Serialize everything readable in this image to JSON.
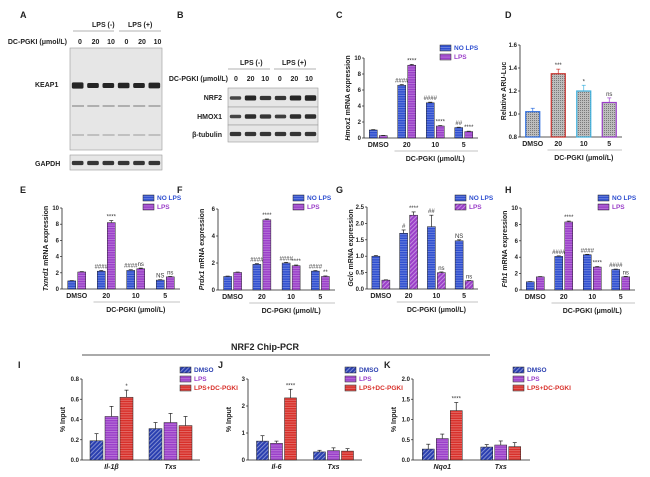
{
  "figure_title": "NRF2 Chip-PCR",
  "blots": {
    "A": {
      "label": "A",
      "lps_neg": "LPS (-)",
      "lps_pos": "LPS (+)",
      "dose_label": "DC-PGKI (μmol/L)",
      "doses": [
        "0",
        "20",
        "10",
        "0",
        "20",
        "10"
      ],
      "bands": [
        "KEAP1",
        "GAPDH"
      ]
    },
    "B": {
      "label": "B",
      "lps_neg": "LPS (-)",
      "lps_pos": "LPS (+)",
      "dose_label": "DC-PGKI (μmol/L)",
      "doses": [
        "0",
        "20",
        "10",
        "0",
        "20",
        "10"
      ],
      "bands": [
        "NRF2",
        "HMOX1",
        "β-tubulin"
      ]
    }
  },
  "colors": {
    "no_lps": "#2f4fd0",
    "lps": "#9b3fc9",
    "red": "#d8302a",
    "lightblue": "#3fb2e0",
    "gray": "#8a8a8a"
  },
  "chart_data": [
    {
      "id": "C",
      "type": "bar",
      "label": "C",
      "ylabel_gene": "Hmox1",
      "ylabel_rest": " mRNA expression",
      "xlabel": "DC-PGKI (μmol/L)",
      "categories": [
        "DMSO",
        "20",
        "10",
        "5"
      ],
      "ylim": [
        0,
        10
      ],
      "yticks": [
        "0",
        "2",
        "4",
        "6",
        "8",
        "10"
      ],
      "series": [
        {
          "name": "NO LPS",
          "style": "h",
          "color": "#2f4fd0",
          "values": [
            1.0,
            6.6,
            4.4,
            1.3
          ],
          "errors": [
            0.05,
            0.08,
            0.08,
            0.05
          ],
          "annotations": [
            "",
            "####",
            "####",
            "##"
          ]
        },
        {
          "name": "LPS",
          "style": "h",
          "color": "#9b3fc9",
          "values": [
            0.3,
            9.1,
            1.5,
            0.8
          ],
          "errors": [
            0.03,
            0.1,
            0.06,
            0.05
          ],
          "annotations": [
            "",
            "****",
            "****",
            "****"
          ]
        }
      ]
    },
    {
      "id": "D",
      "type": "bar",
      "label": "D",
      "ylabel_gene": "",
      "ylabel_rest": "Relative ARU-Luc",
      "xlabel": "DC-PGKI (μmol/L)",
      "categories": [
        "DMSO",
        "20",
        "10",
        "5"
      ],
      "ylim": [
        0.8,
        1.6
      ],
      "yticks": [
        "0.8",
        "1.0",
        "1.2",
        "1.4",
        "1.6"
      ],
      "series": [
        {
          "name": "ARU-Luc",
          "style": "dots",
          "bar_colors": [
            "#2f6fe0",
            "#c8302a",
            "#3fb2e0",
            "#9b3fc9"
          ],
          "values": [
            1.02,
            1.35,
            1.2,
            1.1
          ],
          "errors": [
            0.03,
            0.04,
            0.05,
            0.04
          ],
          "annotations": [
            "",
            "***",
            "*",
            "ns"
          ]
        }
      ]
    },
    {
      "id": "E",
      "type": "bar",
      "label": "E",
      "ylabel_gene": "Txnrd1",
      "ylabel_rest": " mRNA expression",
      "xlabel": "DC-PGKI (μmol/L)",
      "categories": [
        "DMSO",
        "20",
        "10",
        "5"
      ],
      "ylim": [
        0,
        10
      ],
      "yticks": [
        "0",
        "2",
        "4",
        "6",
        "8",
        "10"
      ],
      "series": [
        {
          "name": "NO LPS",
          "style": "h",
          "color": "#2f4fd0",
          "values": [
            1.0,
            2.2,
            2.3,
            1.1
          ],
          "errors": [
            0.04,
            0.08,
            0.08,
            0.05
          ],
          "annotations": [
            "",
            "####",
            "####",
            "NS"
          ]
        },
        {
          "name": "LPS",
          "style": "h",
          "color": "#9b3fc9",
          "values": [
            2.1,
            8.2,
            2.5,
            1.5
          ],
          "errors": [
            0.05,
            0.25,
            0.08,
            0.05
          ],
          "annotations": [
            "",
            "****",
            "ns",
            "ns"
          ]
        }
      ]
    },
    {
      "id": "F",
      "type": "bar",
      "label": "F",
      "ylabel_gene": "Prdx1",
      "ylabel_rest": " mRNA expression",
      "xlabel": "DC-PGKI (μmol/L)",
      "categories": [
        "DMSO",
        "20",
        "10",
        "5"
      ],
      "ylim": [
        0,
        6
      ],
      "yticks": [
        "0",
        "2",
        "4",
        "6"
      ],
      "series": [
        {
          "name": "NO LPS",
          "style": "h",
          "color": "#2f4fd0",
          "values": [
            1.0,
            1.9,
            2.0,
            1.4
          ],
          "errors": [
            0.03,
            0.05,
            0.05,
            0.04
          ],
          "annotations": [
            "",
            "####",
            "####",
            "####"
          ]
        },
        {
          "name": "LPS",
          "style": "h",
          "color": "#9b3fc9",
          "values": [
            1.3,
            5.2,
            1.8,
            1.0
          ],
          "errors": [
            0.03,
            0.06,
            0.05,
            0.04
          ],
          "annotations": [
            "",
            "****",
            "****",
            "**"
          ]
        }
      ]
    },
    {
      "id": "G",
      "type": "bar",
      "label": "G",
      "ylabel_gene": "Gclc",
      "ylabel_rest": " mRNA expression",
      "xlabel": "DC-PGKI (μmol/L)",
      "categories": [
        "DMSO",
        "20",
        "10",
        "5"
      ],
      "ylim": [
        0,
        2.5
      ],
      "yticks": [
        "0.0",
        "0.5",
        "1.0",
        "1.5",
        "2.0",
        "2.5"
      ],
      "series": [
        {
          "name": "NO LPS",
          "style": "h",
          "color": "#2f4fd0",
          "values": [
            1.0,
            1.7,
            1.9,
            1.47
          ],
          "errors": [
            0.02,
            0.1,
            0.35,
            0.03
          ],
          "annotations": [
            "",
            "#",
            "##",
            "NS"
          ]
        },
        {
          "name": "LPS",
          "style": "d",
          "color": "#9b3fc9",
          "values": [
            0.27,
            2.25,
            0.5,
            0.25
          ],
          "errors": [
            0.01,
            0.1,
            0.02,
            0.01
          ],
          "annotations": [
            "",
            "****",
            "ns",
            "ns"
          ]
        }
      ]
    },
    {
      "id": "H",
      "type": "bar",
      "label": "H",
      "ylabel_gene": "Fth1",
      "ylabel_rest": " mRNA expression",
      "xlabel": "DC-PGKI (μmol/L)",
      "categories": [
        "DMSO",
        "20",
        "10",
        "5"
      ],
      "ylim": [
        0,
        10
      ],
      "yticks": [
        "0",
        "2",
        "4",
        "6",
        "8",
        "10"
      ],
      "series": [
        {
          "name": "NO LPS",
          "style": "h",
          "color": "#2f4fd0",
          "values": [
            1.0,
            4.1,
            4.3,
            2.5
          ],
          "errors": [
            0.03,
            0.06,
            0.05,
            0.05
          ],
          "annotations": [
            "",
            "####",
            "####",
            "####"
          ]
        },
        {
          "name": "LPS",
          "style": "h",
          "color": "#9b3fc9",
          "values": [
            1.6,
            8.3,
            2.8,
            1.6
          ],
          "errors": [
            0.04,
            0.1,
            0.06,
            0.06
          ],
          "annotations": [
            "",
            "****",
            "****",
            "ns"
          ]
        }
      ]
    },
    {
      "id": "I",
      "type": "bar",
      "label": "I",
      "ylabel_gene": "",
      "ylabel_rest": "% Input",
      "xlabel": "",
      "categories": [
        "Il-1β",
        "Txs"
      ],
      "ylim": [
        0,
        0.8
      ],
      "yticks": [
        "0.0",
        "0.2",
        "0.4",
        "0.6",
        "0.8"
      ],
      "series": [
        {
          "name": "DMSO",
          "style": "d",
          "color": "#2a3fb0",
          "values": [
            0.19,
            0.31
          ],
          "errors": [
            0.07,
            0.06
          ],
          "annotations": [
            "",
            ""
          ]
        },
        {
          "name": "LPS",
          "style": "h",
          "color": "#9b3fc9",
          "values": [
            0.43,
            0.37
          ],
          "errors": [
            0.1,
            0.09
          ],
          "annotations": [
            "",
            ""
          ]
        },
        {
          "name": "LPS+DC-PGKI",
          "style": "h",
          "color": "#d8302a",
          "values": [
            0.62,
            0.34
          ],
          "errors": [
            0.07,
            0.09
          ],
          "annotations": [
            "*",
            ""
          ]
        }
      ]
    },
    {
      "id": "J",
      "type": "bar",
      "label": "J",
      "ylabel_gene": "",
      "ylabel_rest": "% Input",
      "xlabel": "",
      "categories": [
        "Il-6",
        "Txs"
      ],
      "ylim": [
        0,
        3
      ],
      "yticks": [
        "0",
        "1",
        "2",
        "3"
      ],
      "series": [
        {
          "name": "DMSO",
          "style": "d",
          "color": "#2a3fb0",
          "values": [
            0.7,
            0.3
          ],
          "errors": [
            0.2,
            0.06
          ],
          "annotations": [
            "",
            ""
          ]
        },
        {
          "name": "LPS",
          "style": "h",
          "color": "#9b3fc9",
          "values": [
            0.62,
            0.35
          ],
          "errors": [
            0.08,
            0.1
          ],
          "annotations": [
            "",
            ""
          ]
        },
        {
          "name": "LPS+DC-PGKI",
          "style": "h",
          "color": "#d8302a",
          "values": [
            2.3,
            0.33
          ],
          "errors": [
            0.32,
            0.09
          ],
          "annotations": [
            "****",
            ""
          ]
        }
      ]
    },
    {
      "id": "K",
      "type": "bar",
      "label": "K",
      "ylabel_gene": "",
      "ylabel_rest": "% Input",
      "xlabel": "",
      "categories": [
        "Nqo1",
        "Txs"
      ],
      "ylim": [
        0,
        2.0
      ],
      "yticks": [
        "0.0",
        "0.5",
        "1.0",
        "1.5",
        "2.0"
      ],
      "series": [
        {
          "name": "DMSO",
          "style": "d",
          "color": "#2a3fb0",
          "values": [
            0.27,
            0.32
          ],
          "errors": [
            0.12,
            0.06
          ],
          "annotations": [
            "",
            ""
          ]
        },
        {
          "name": "LPS",
          "style": "h",
          "color": "#9b3fc9",
          "values": [
            0.53,
            0.37
          ],
          "errors": [
            0.11,
            0.1
          ],
          "annotations": [
            "",
            ""
          ]
        },
        {
          "name": "LPS+DC-PGKI",
          "style": "h",
          "color": "#d8302a",
          "values": [
            1.22,
            0.33
          ],
          "errors": [
            0.2,
            0.1
          ],
          "annotations": [
            "****",
            ""
          ]
        }
      ]
    }
  ]
}
